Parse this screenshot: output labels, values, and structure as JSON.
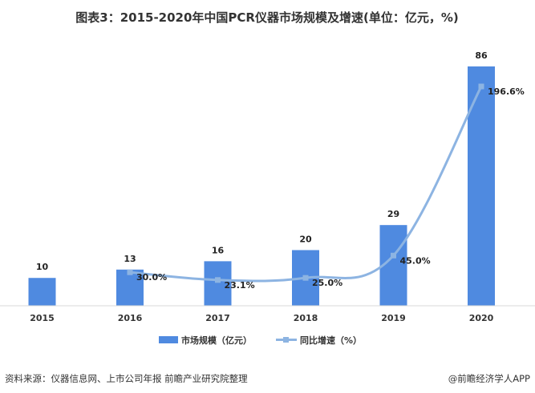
{
  "chart_data": {
    "type": "bar",
    "title": "图表3：2015-2020年中国PCR仪器市场规模及增速(单位：亿元，%)",
    "categories": [
      "2015",
      "2016",
      "2017",
      "2018",
      "2019",
      "2020"
    ],
    "series": [
      {
        "name": "市场规模（亿元）",
        "type": "bar",
        "values": [
          10,
          13,
          16,
          20,
          29,
          86
        ],
        "labels": [
          "10",
          "13",
          "16",
          "20",
          "29",
          "86"
        ],
        "color": "#4f8ae0"
      },
      {
        "name": "同比增速（%）",
        "type": "line",
        "values": [
          null,
          30.0,
          23.1,
          25.0,
          45.0,
          196.6
        ],
        "labels": [
          "",
          "30.0%",
          "23.1%",
          "25.0%",
          "45.0%",
          "196.6%"
        ],
        "color": "#8db4e2"
      }
    ],
    "ylim_bar": [
      0,
      86
    ],
    "ylim_line": [
      0,
      196.6
    ],
    "grid": false
  },
  "source": "资料来源：仪器信息网、上市公司年报 前瞻产业研究院整理",
  "brand": "@前瞻经济学人APP"
}
